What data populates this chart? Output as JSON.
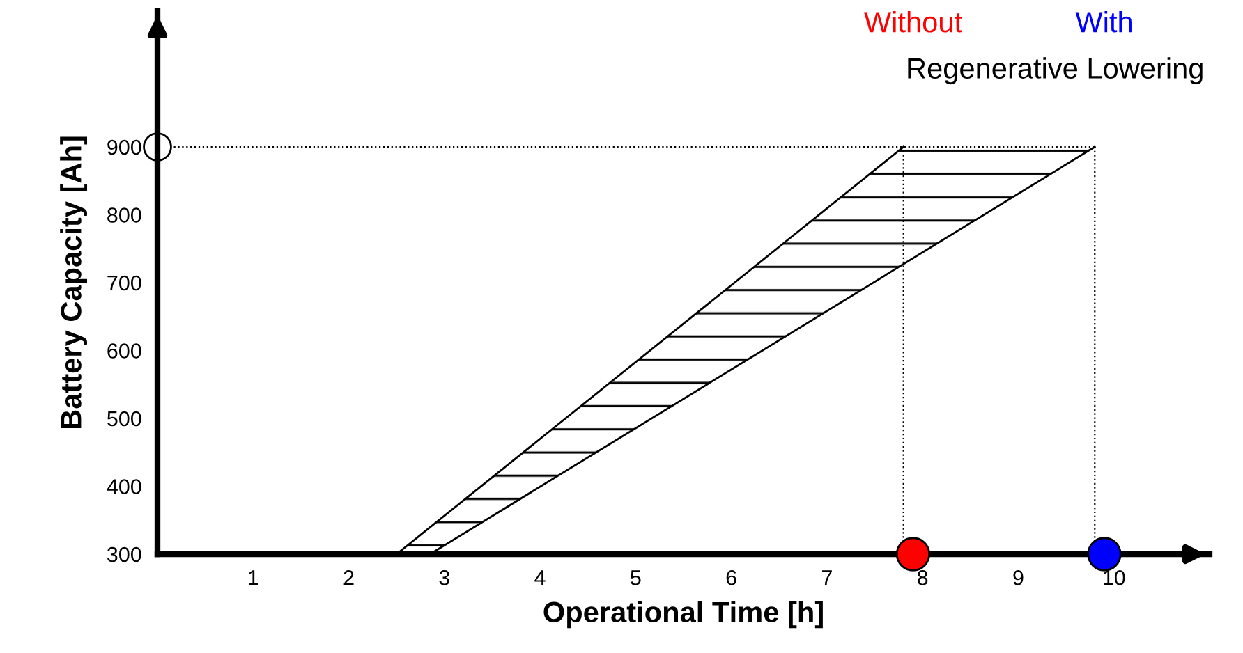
{
  "chart_data": {
    "type": "line",
    "xlabel": "Operational Time [h]",
    "ylabel": "Battery Capacity [Ah]",
    "xlim": [
      0,
      11
    ],
    "ylim": [
      300,
      1100
    ],
    "xticks": [
      1,
      2,
      3,
      4,
      5,
      6,
      7,
      8,
      9,
      10
    ],
    "yticks": [
      300,
      400,
      500,
      600,
      700,
      800,
      900
    ],
    "series": [
      {
        "color": "#000000",
        "x": [
          2.5,
          7.8
        ],
        "values": [
          300,
          900
        ]
      },
      {
        "color": "#000000",
        "x": [
          2.85,
          9.8
        ],
        "values": [
          300,
          900
        ]
      },
      {
        "type": "scatter",
        "marker": "circle",
        "name": "Without",
        "color": "#ff0000",
        "x": [
          7.9
        ],
        "values": [
          300
        ]
      },
      {
        "type": "scatter",
        "marker": "circle",
        "name": "With",
        "color": "#0000ff",
        "x": [
          9.9
        ],
        "values": [
          300
        ]
      }
    ],
    "ref_lines": [
      {
        "axis": "y",
        "value": 900,
        "line_style": "dotted",
        "color": "#000000"
      },
      {
        "axis": "x",
        "value": 7.8,
        "line_style": "dotted",
        "color": "#000000"
      },
      {
        "axis": "x",
        "value": 9.8,
        "line_style": "dotted",
        "color": "#000000"
      }
    ],
    "annotations": [
      "Regenerative Lowering"
    ],
    "grid": false,
    "legend": "top right"
  }
}
